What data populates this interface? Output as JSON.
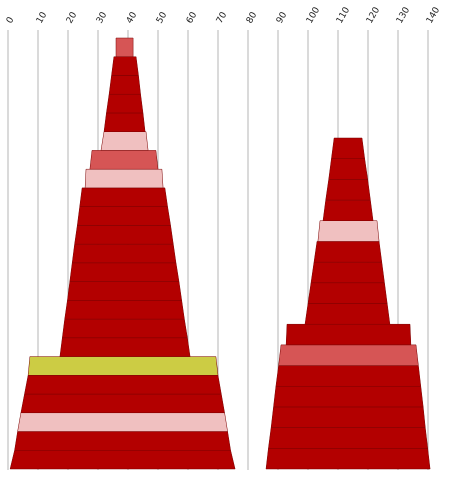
{
  "chart_data": {
    "type": "tower",
    "xlim": [
      0,
      148
    ],
    "xticks": [
      0,
      10,
      20,
      30,
      40,
      50,
      60,
      70,
      80,
      90,
      100,
      110,
      120,
      130,
      140
    ],
    "grid": true,
    "towers": [
      {
        "rows": [
          {
            "color": "#b30000",
            "bottom": [
              0.7,
              75.7
            ],
            "top": [
              2.2,
              74.2
            ]
          },
          {
            "color": "#b30000",
            "bottom": [
              2.2,
              74.2
            ],
            "top": [
              3.2,
              73.2
            ]
          },
          {
            "color": "#f0c0c0",
            "bottom": [
              3.2,
              73.2
            ],
            "top": [
              4.3,
              72.2
            ]
          },
          {
            "color": "#b30000",
            "bottom": [
              4.3,
              72.2
            ],
            "top": [
              5.5,
              71.1
            ]
          },
          {
            "color": "#b30000",
            "bottom": [
              5.5,
              71.1
            ],
            "top": [
              6.7,
              70
            ]
          },
          {
            "color": "#cccc44",
            "bottom": [
              6.7,
              70
            ],
            "top": [
              7.3,
              69.3
            ]
          },
          {
            "color": "#b30000",
            "bottom": [
              17.3,
              60.7
            ],
            "top": [
              18.1,
              59.8
            ]
          },
          {
            "color": "#b30000",
            "bottom": [
              18.1,
              59.8
            ],
            "top": [
              18.9,
              58.8
            ]
          },
          {
            "color": "#b30000",
            "bottom": [
              18.9,
              58.8
            ],
            "top": [
              19.8,
              57.9
            ]
          },
          {
            "color": "#b30000",
            "bottom": [
              19.8,
              57.9
            ],
            "top": [
              20.6,
              57
            ]
          },
          {
            "color": "#b30000",
            "bottom": [
              20.6,
              57
            ],
            "top": [
              21.4,
              56
            ]
          },
          {
            "color": "#b30000",
            "bottom": [
              21.4,
              56
            ],
            "top": [
              22.2,
              55.1
            ]
          },
          {
            "color": "#b30000",
            "bottom": [
              22.2,
              55.1
            ],
            "top": [
              23.1,
              54.2
            ]
          },
          {
            "color": "#b30000",
            "bottom": [
              23.1,
              54.2
            ],
            "top": [
              23.9,
              53.2
            ]
          },
          {
            "color": "#b30000",
            "bottom": [
              23.9,
              53.2
            ],
            "top": [
              24.7,
              52.3
            ]
          },
          {
            "color": "#f0c0c0",
            "bottom": [
              25.7,
              51.7
            ],
            "top": [
              26,
              51.3
            ]
          },
          {
            "color": "#d65555",
            "bottom": [
              27.3,
              50
            ],
            "top": [
              28,
              49.3
            ]
          },
          {
            "color": "#f0c0c0",
            "bottom": [
              31,
              46.7
            ],
            "top": [
              32,
              46
            ]
          },
          {
            "color": "#b30000",
            "bottom": [
              32,
              45.7
            ],
            "top": [
              32.8,
              45
            ]
          },
          {
            "color": "#b30000",
            "bottom": [
              32.8,
              45
            ],
            "top": [
              33.7,
              44.2
            ]
          },
          {
            "color": "#b30000",
            "bottom": [
              33.7,
              44.2
            ],
            "top": [
              34.5,
              43.5
            ]
          },
          {
            "color": "#b30000",
            "bottom": [
              34.5,
              43.5
            ],
            "top": [
              35.3,
              42.7
            ]
          },
          {
            "color": "#d65555",
            "bottom": [
              36,
              41.7
            ],
            "top": [
              36,
              41.7
            ]
          }
        ]
      },
      {
        "rows": [
          {
            "color": "#b30000",
            "bottom": [
              86,
              140.7
            ],
            "top": [
              86.8,
              139.9
            ]
          },
          {
            "color": "#b30000",
            "bottom": [
              86.8,
              139.9
            ],
            "top": [
              87.7,
              139.1
            ]
          },
          {
            "color": "#b30000",
            "bottom": [
              87.7,
              139.1
            ],
            "top": [
              88.5,
              138.4
            ]
          },
          {
            "color": "#b30000",
            "bottom": [
              88.5,
              138.4
            ],
            "top": [
              89.3,
              137.6
            ]
          },
          {
            "color": "#b30000",
            "bottom": [
              89.3,
              137.6
            ],
            "top": [
              90.2,
              136.8
            ]
          },
          {
            "color": "#d65555",
            "bottom": [
              90.2,
              136.8
            ],
            "top": [
              91,
              136
            ]
          },
          {
            "color": "#b30000",
            "bottom": [
              92.7,
              134.3
            ],
            "top": [
              93,
              134
            ]
          },
          {
            "color": "#b30000",
            "bottom": [
              99,
              127.3
            ],
            "top": [
              100,
              126.4
            ]
          },
          {
            "color": "#b30000",
            "bottom": [
              100,
              126.4
            ],
            "top": [
              101,
              125.5
            ]
          },
          {
            "color": "#b30000",
            "bottom": [
              101,
              125.5
            ],
            "top": [
              102,
              124.6
            ]
          },
          {
            "color": "#b30000",
            "bottom": [
              102,
              124.6
            ],
            "top": [
              103,
              123.7
            ]
          },
          {
            "color": "#f0c0c0",
            "bottom": [
              103.3,
              123.7
            ],
            "top": [
              104,
              123
            ]
          },
          {
            "color": "#b30000",
            "bottom": [
              105,
              121.7
            ],
            "top": [
              105.9,
              120.8
            ]
          },
          {
            "color": "#b30000",
            "bottom": [
              105.9,
              120.8
            ],
            "top": [
              106.9,
              119.9
            ]
          },
          {
            "color": "#b30000",
            "bottom": [
              106.9,
              119.9
            ],
            "top": [
              107.8,
              118.9
            ]
          },
          {
            "color": "#b30000",
            "bottom": [
              107.8,
              118.9
            ],
            "top": [
              108.7,
              118
            ]
          }
        ]
      }
    ]
  }
}
